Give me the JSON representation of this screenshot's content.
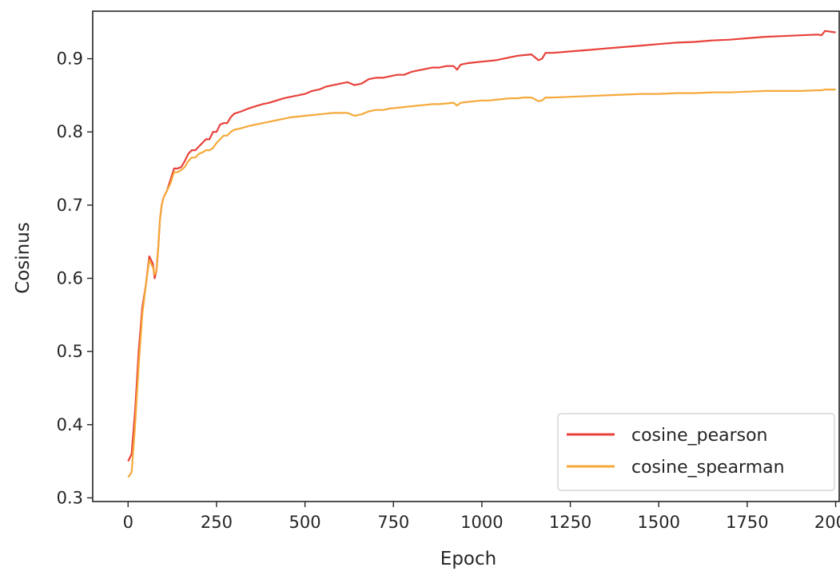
{
  "chart_data": {
    "type": "line",
    "title": "",
    "xlabel": "Epoch",
    "ylabel": "Cosinus",
    "xlim": [
      -100,
      2010
    ],
    "ylim": [
      0.295,
      0.965
    ],
    "xticks": [
      0,
      250,
      500,
      750,
      1000,
      1250,
      1500,
      1750,
      2000
    ],
    "yticks": [
      0.3,
      0.4,
      0.5,
      0.6,
      0.7,
      0.8,
      0.9
    ],
    "grid": false,
    "legend_position": "lower-right",
    "series": [
      {
        "name": "cosine_pearson",
        "color": "#e8413a",
        "x": [
          0,
          10,
          20,
          30,
          40,
          50,
          60,
          70,
          75,
          80,
          85,
          90,
          95,
          100,
          110,
          120,
          130,
          140,
          150,
          160,
          170,
          180,
          190,
          200,
          210,
          220,
          230,
          240,
          250,
          260,
          270,
          280,
          290,
          300,
          320,
          340,
          360,
          380,
          400,
          420,
          440,
          460,
          480,
          500,
          520,
          540,
          560,
          580,
          600,
          620,
          640,
          660,
          680,
          700,
          720,
          740,
          760,
          780,
          800,
          820,
          840,
          860,
          880,
          900,
          920,
          930,
          940,
          960,
          980,
          1000,
          1020,
          1040,
          1060,
          1080,
          1100,
          1120,
          1140,
          1160,
          1170,
          1180,
          1200,
          1250,
          1300,
          1350,
          1400,
          1450,
          1500,
          1550,
          1600,
          1650,
          1700,
          1750,
          1800,
          1850,
          1900,
          1950,
          1960,
          1970,
          2000
        ],
        "y": [
          0.35,
          0.36,
          0.42,
          0.5,
          0.56,
          0.59,
          0.63,
          0.62,
          0.6,
          0.61,
          0.64,
          0.68,
          0.7,
          0.71,
          0.72,
          0.735,
          0.75,
          0.75,
          0.752,
          0.76,
          0.77,
          0.775,
          0.775,
          0.78,
          0.785,
          0.79,
          0.79,
          0.8,
          0.8,
          0.81,
          0.812,
          0.812,
          0.82,
          0.825,
          0.828,
          0.832,
          0.835,
          0.838,
          0.84,
          0.843,
          0.846,
          0.848,
          0.85,
          0.852,
          0.856,
          0.858,
          0.862,
          0.864,
          0.866,
          0.868,
          0.864,
          0.866,
          0.872,
          0.874,
          0.874,
          0.876,
          0.878,
          0.878,
          0.882,
          0.884,
          0.886,
          0.888,
          0.888,
          0.89,
          0.89,
          0.885,
          0.892,
          0.894,
          0.895,
          0.896,
          0.897,
          0.898,
          0.9,
          0.902,
          0.904,
          0.905,
          0.906,
          0.898,
          0.9,
          0.908,
          0.908,
          0.91,
          0.912,
          0.914,
          0.916,
          0.918,
          0.92,
          0.922,
          0.923,
          0.925,
          0.926,
          0.928,
          0.93,
          0.931,
          0.932,
          0.933,
          0.932,
          0.938,
          0.936
        ]
      },
      {
        "name": "cosine_spearman",
        "color": "#f5a93a",
        "x": [
          0,
          10,
          20,
          30,
          40,
          50,
          60,
          70,
          75,
          80,
          85,
          90,
          95,
          100,
          110,
          120,
          130,
          140,
          150,
          160,
          170,
          180,
          190,
          200,
          210,
          220,
          230,
          240,
          250,
          260,
          270,
          280,
          290,
          300,
          320,
          340,
          360,
          380,
          400,
          420,
          440,
          460,
          480,
          500,
          520,
          540,
          560,
          580,
          600,
          620,
          640,
          660,
          680,
          700,
          720,
          740,
          760,
          780,
          800,
          820,
          840,
          860,
          880,
          900,
          920,
          930,
          940,
          960,
          980,
          1000,
          1020,
          1040,
          1060,
          1080,
          1100,
          1120,
          1140,
          1160,
          1170,
          1180,
          1200,
          1250,
          1300,
          1350,
          1400,
          1450,
          1500,
          1550,
          1600,
          1650,
          1700,
          1750,
          1800,
          1850,
          1900,
          1950,
          1960,
          1970,
          2000
        ],
        "y": [
          0.328,
          0.335,
          0.4,
          0.48,
          0.55,
          0.59,
          0.625,
          0.615,
          0.605,
          0.61,
          0.64,
          0.68,
          0.7,
          0.71,
          0.72,
          0.73,
          0.745,
          0.745,
          0.748,
          0.752,
          0.76,
          0.765,
          0.765,
          0.77,
          0.772,
          0.775,
          0.775,
          0.778,
          0.785,
          0.79,
          0.795,
          0.795,
          0.8,
          0.803,
          0.805,
          0.808,
          0.81,
          0.812,
          0.814,
          0.816,
          0.818,
          0.82,
          0.821,
          0.822,
          0.823,
          0.824,
          0.825,
          0.826,
          0.826,
          0.826,
          0.822,
          0.824,
          0.828,
          0.83,
          0.83,
          0.832,
          0.833,
          0.834,
          0.835,
          0.836,
          0.837,
          0.838,
          0.838,
          0.839,
          0.84,
          0.836,
          0.84,
          0.841,
          0.842,
          0.843,
          0.843,
          0.844,
          0.845,
          0.846,
          0.846,
          0.847,
          0.847,
          0.842,
          0.843,
          0.847,
          0.847,
          0.848,
          0.849,
          0.85,
          0.851,
          0.852,
          0.852,
          0.853,
          0.853,
          0.854,
          0.854,
          0.855,
          0.856,
          0.856,
          0.856,
          0.857,
          0.857,
          0.858,
          0.858
        ]
      }
    ]
  }
}
